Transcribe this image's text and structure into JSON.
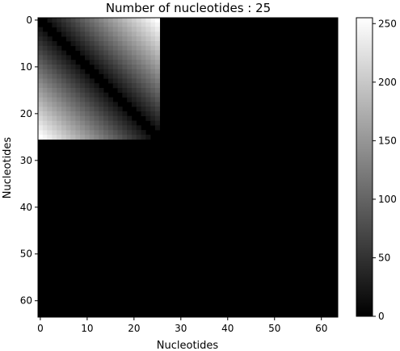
{
  "chart_data": {
    "type": "heatmap",
    "title": "Number of nucleotides : 25",
    "xlabel": "Nucleotides",
    "ylabel": "Nucleotides",
    "matrix_size": 64,
    "active_size": 26,
    "x_ticks": [
      0,
      10,
      20,
      30,
      40,
      50,
      60
    ],
    "y_ticks": [
      0,
      10,
      20,
      30,
      40,
      50,
      60
    ],
    "value_rule": "value(i,j) = round(|i - j| * 255 / 25) for i,j < 26 with a 1-cell dark band at |i-j| = 1; 0 elsewhere",
    "vmin": 0,
    "vmax": 255,
    "colormap": "gray",
    "colorbar_ticks": [
      0,
      50,
      100,
      150,
      200,
      250
    ]
  }
}
